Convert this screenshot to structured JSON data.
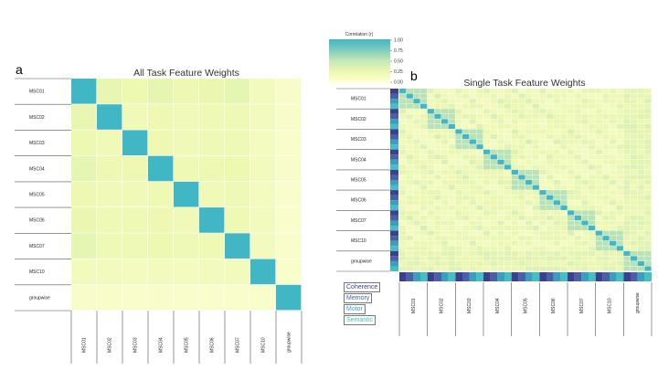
{
  "panels": [
    {
      "id": "a",
      "letter": "a",
      "title": "All Task Feature Weights",
      "labels": [
        "MSC01",
        "MSC02",
        "MSC03",
        "MSC04",
        "MSC05",
        "MSC06",
        "MSC07",
        "MSC10",
        "groupwise"
      ]
    },
    {
      "id": "b",
      "letter": "b",
      "title": "Single Task Feature Weights",
      "labels": [
        "MSC01",
        "MSC02",
        "MSC03",
        "MSC04",
        "MSC05",
        "MSC06",
        "MSC07",
        "MSC10",
        "groupwise"
      ]
    }
  ],
  "colorbar": {
    "label": "Correlation (r)",
    "ticks": [
      "1.00",
      "0.75",
      "0.50",
      "0.25",
      "0.00"
    ]
  },
  "tasks": [
    {
      "label": "Coherence",
      "color": "#3b3f8f"
    },
    {
      "label": "Memory",
      "color": "#4a5fa8"
    },
    {
      "label": "Motor",
      "color": "#3a9fbf"
    },
    {
      "label": "Semantic",
      "color": "#45c0be"
    }
  ],
  "chart_data": [
    {
      "type": "heatmap",
      "title": "All Task Feature Weights",
      "rows": [
        "MSC01",
        "MSC02",
        "MSC03",
        "MSC04",
        "MSC05",
        "MSC06",
        "MSC07",
        "MSC10",
        "groupwise"
      ],
      "cols": [
        "MSC01",
        "MSC02",
        "MSC03",
        "MSC04",
        "MSC05",
        "MSC06",
        "MSC07",
        "MSC10",
        "groupwise"
      ],
      "values": [
        [
          1.0,
          0.28,
          0.25,
          0.3,
          0.24,
          0.26,
          0.3,
          0.18,
          0.1
        ],
        [
          0.28,
          1.0,
          0.2,
          0.24,
          0.2,
          0.22,
          0.22,
          0.17,
          0.1
        ],
        [
          0.25,
          0.2,
          1.0,
          0.24,
          0.2,
          0.22,
          0.22,
          0.16,
          0.09
        ],
        [
          0.3,
          0.24,
          0.24,
          1.0,
          0.23,
          0.24,
          0.25,
          0.17,
          0.1
        ],
        [
          0.24,
          0.2,
          0.2,
          0.23,
          1.0,
          0.21,
          0.22,
          0.16,
          0.09
        ],
        [
          0.26,
          0.22,
          0.22,
          0.24,
          0.21,
          1.0,
          0.23,
          0.17,
          0.09
        ],
        [
          0.3,
          0.22,
          0.22,
          0.25,
          0.22,
          0.23,
          1.0,
          0.17,
          0.09
        ],
        [
          0.18,
          0.17,
          0.16,
          0.17,
          0.16,
          0.17,
          0.17,
          1.0,
          0.08
        ],
        [
          0.1,
          0.1,
          0.09,
          0.1,
          0.09,
          0.09,
          0.09,
          0.08,
          1.0
        ]
      ],
      "vmin": 0,
      "vmax": 1
    },
    {
      "type": "heatmap",
      "title": "Single Task Feature Weights",
      "rows": [
        "MSC01",
        "MSC02",
        "MSC03",
        "MSC04",
        "MSC05",
        "MSC06",
        "MSC07",
        "MSC10",
        "groupwise"
      ],
      "cols": [
        "MSC01",
        "MSC02",
        "MSC03",
        "MSC04",
        "MSC05",
        "MSC06",
        "MSC07",
        "MSC10",
        "groupwise"
      ],
      "tasks_per_subject": 4,
      "within_subject_same_task": 1.0,
      "within_subject_other_task": 0.55,
      "between_subject": 0.22,
      "groupwise_with_subjects": 0.3,
      "vmin": 0,
      "vmax": 1
    }
  ]
}
